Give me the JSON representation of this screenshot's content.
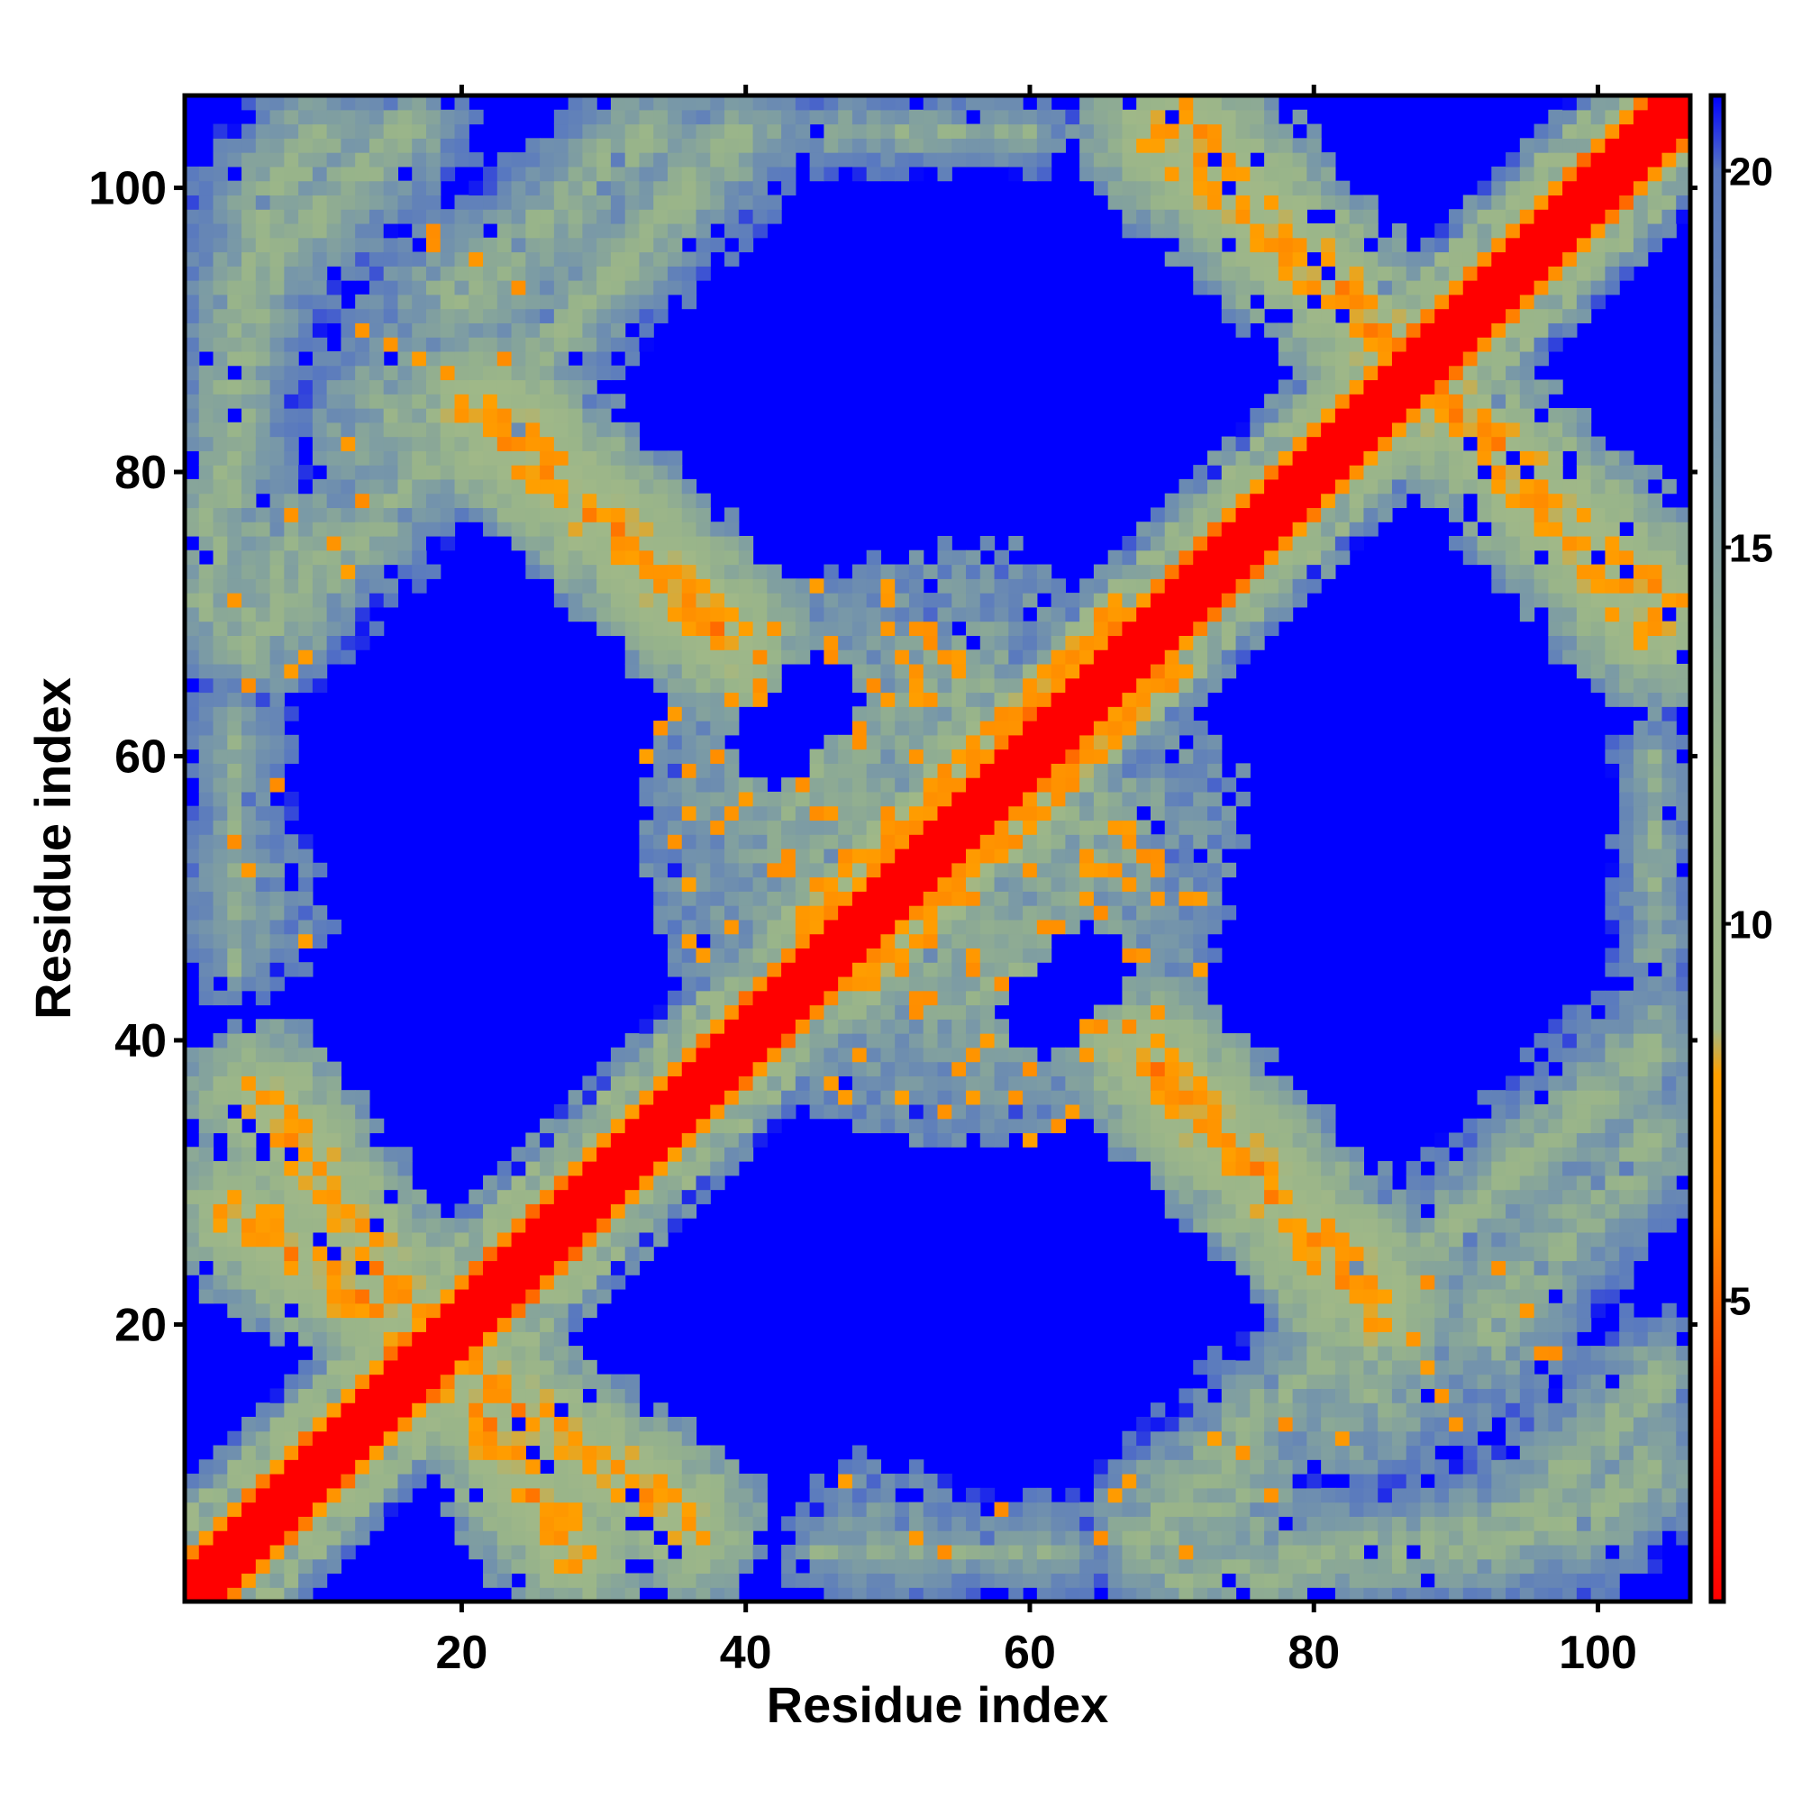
{
  "chart_data": {
    "type": "heatmap",
    "title": "",
    "xlabel": "Residue index",
    "ylabel": "Residue index",
    "n_residues": 106,
    "xlim": [
      1,
      106
    ],
    "ylim": [
      1,
      106
    ],
    "x_ticks": [
      20,
      40,
      60,
      80,
      100
    ],
    "y_ticks": [
      20,
      40,
      60,
      80,
      100
    ],
    "colorbar": {
      "range": [
        1,
        21
      ],
      "ticks": [
        5,
        10,
        15,
        20
      ],
      "stops": [
        {
          "value": 1,
          "color": "#ff0000"
        },
        {
          "value": 4,
          "color": "#ff4000"
        },
        {
          "value": 6,
          "color": "#ff8c00"
        },
        {
          "value": 8,
          "color": "#ffa000"
        },
        {
          "value": 8.6,
          "color": "#a0b888"
        },
        {
          "value": 12,
          "color": "#98b48a"
        },
        {
          "value": 16,
          "color": "#7898a8"
        },
        {
          "value": 20,
          "color": "#5878c0"
        },
        {
          "value": 21,
          "color": "#0000ff"
        }
      ]
    },
    "pattern": {
      "description_type": "symmetric contact distance map",
      "diagonal_value": 1,
      "background_value": 21,
      "bands": [
        {
          "points": [
            [
              6,
              36
            ],
            [
              28,
              4
            ]
          ],
          "core_value": 7,
          "halfwidth": 5
        },
        {
          "points": [
            [
              23,
              84
            ],
            [
              39,
              68
            ]
          ],
          "core_value": 7,
          "halfwidth": 5
        },
        {
          "points": [
            [
              71,
              105
            ],
            [
              87,
              87
            ],
            [
              104,
              69
            ]
          ],
          "core_value": 7,
          "halfwidth": 5
        },
        {
          "points": [
            [
              69,
              38
            ],
            [
              84,
              21
            ]
          ],
          "core_value": 7,
          "halfwidth": 5
        },
        {
          "points": [
            [
              2,
              71
            ],
            [
              6,
              99
            ],
            [
              10,
              104
            ]
          ],
          "core_value": 12,
          "halfwidth": 5
        },
        {
          "points": [
            [
              20,
              92
            ],
            [
              33,
              104
            ]
          ],
          "core_value": 12,
          "halfwidth": 5
        },
        {
          "points": [
            [
              68,
              5
            ],
            [
              90,
              27
            ],
            [
              104,
              40
            ]
          ],
          "core_value": 12,
          "halfwidth": 5
        },
        {
          "points": [
            [
              93,
              5
            ],
            [
              104,
              16
            ]
          ],
          "core_value": 12,
          "halfwidth": 5
        },
        {
          "points": [
            [
              4,
              45
            ],
            [
              4,
              62
            ]
          ],
          "core_value": 13,
          "halfwidth": 3
        },
        {
          "points": [
            [
              104,
              46
            ],
            [
              104,
              60
            ]
          ],
          "core_value": 13,
          "halfwidth": 3
        }
      ],
      "blobs": [
        {
          "center": [
            52,
            48
          ],
          "radius": 14,
          "value": 13
        },
        {
          "center": [
            55,
            62
          ],
          "radius": 12,
          "value": 13
        },
        {
          "center": [
            62,
            45
          ],
          "radius": 10,
          "value": 13
        },
        {
          "center": [
            44,
            58
          ],
          "radius": 10,
          "value": 13
        },
        {
          "center": [
            8,
            74
          ],
          "radius": 5,
          "value": 12
        },
        {
          "center": [
            70,
            6
          ],
          "radius": 5,
          "value": 12
        },
        {
          "center": [
            50,
            5
          ],
          "radius": 5,
          "value": 14
        },
        {
          "center": [
            60,
            4
          ],
          "radius": 4,
          "value": 15
        },
        {
          "center": [
            84,
            15
          ],
          "radius": 6,
          "value": 13
        },
        {
          "center": [
            92,
            20
          ],
          "radius": 6,
          "value": 13
        }
      ],
      "holes": [
        {
          "center": [
            42,
            61
          ],
          "radius": 3
        },
        {
          "center": [
            64,
            45
          ],
          "radius": 3
        }
      ],
      "near_diagonal_shoulder": {
        "offset": 4,
        "value": 6,
        "from": 44,
        "to": 66
      }
    }
  }
}
